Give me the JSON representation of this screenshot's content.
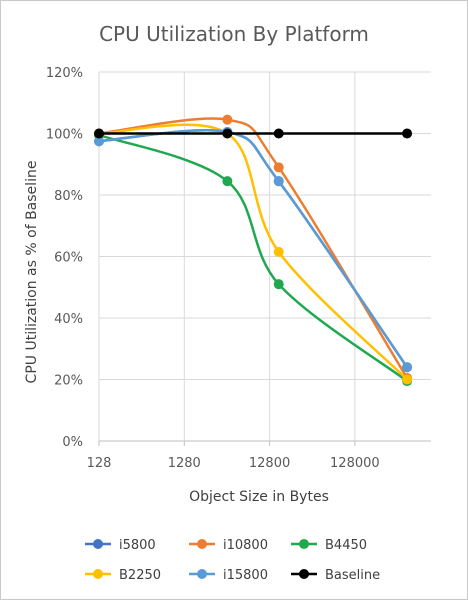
{
  "chart_data": {
    "type": "line",
    "title": "CPU Utilization By Platform",
    "xlabel": "Object Size in Bytes",
    "ylabel": "CPU Utilization as % of Baseline",
    "x_scale": "log",
    "x_ticks": [
      "128",
      "1280",
      "12800",
      "128000"
    ],
    "xlim": [
      128,
      1000000
    ],
    "ylim": [
      0,
      120
    ],
    "y_ticks": [
      "0%",
      "20%",
      "40%",
      "60%",
      "80%",
      "100%",
      "120%"
    ],
    "grid": true,
    "legend_position": "bottom",
    "x": [
      128,
      4096,
      16384,
      524288
    ],
    "series": [
      {
        "name": "i5800",
        "color": "#4472c4",
        "values": [
          97.5,
          100.5,
          84.5,
          24
        ]
      },
      {
        "name": "i10800",
        "color": "#ed7d31",
        "values": [
          100,
          104.5,
          89,
          20.5
        ]
      },
      {
        "name": "B4450",
        "color": "#1fa84f",
        "values": [
          99.5,
          84.5,
          51,
          19.5
        ]
      },
      {
        "name": "B2250",
        "color": "#ffc000",
        "values": [
          100,
          100,
          61.5,
          20
        ]
      },
      {
        "name": "i15800",
        "color": "#5b9bd5",
        "values": [
          97.5,
          100.5,
          84.5,
          24
        ]
      },
      {
        "name": "Baseline",
        "color": "#000000",
        "values": [
          100,
          100,
          100,
          100
        ]
      }
    ]
  }
}
